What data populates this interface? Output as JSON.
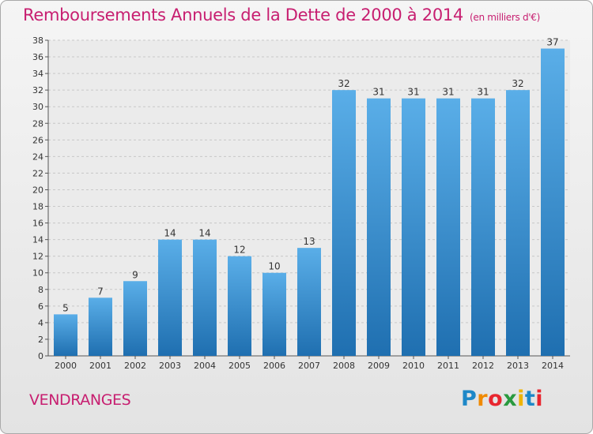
{
  "header": {
    "title": "Remboursements Annuels de la Dette de 2000 à 2014",
    "unit": "(en milliers d'€)"
  },
  "footer": {
    "commune": "VENDRANGES",
    "logo_text": "Proxiti"
  },
  "colors": {
    "title": "#c71e70",
    "bar_top": "#5aaee8",
    "bar_bottom": "#1f6fb0"
  },
  "chart_data": {
    "type": "bar",
    "title": "Remboursements Annuels de la Dette de 2000 à 2014",
    "xlabel": "",
    "ylabel": "",
    "categories": [
      "2000",
      "2001",
      "2002",
      "2003",
      "2004",
      "2005",
      "2006",
      "2007",
      "2008",
      "2009",
      "2010",
      "2011",
      "2012",
      "2013",
      "2014"
    ],
    "values": [
      5,
      7,
      9,
      14,
      14,
      12,
      10,
      13,
      32,
      31,
      31,
      31,
      31,
      32,
      37
    ],
    "ylim": [
      0,
      38
    ],
    "yticks": [
      0,
      2,
      4,
      6,
      8,
      10,
      12,
      14,
      16,
      18,
      20,
      22,
      24,
      26,
      28,
      30,
      32,
      34,
      36,
      38
    ],
    "grid": "horizontal-dashed"
  }
}
